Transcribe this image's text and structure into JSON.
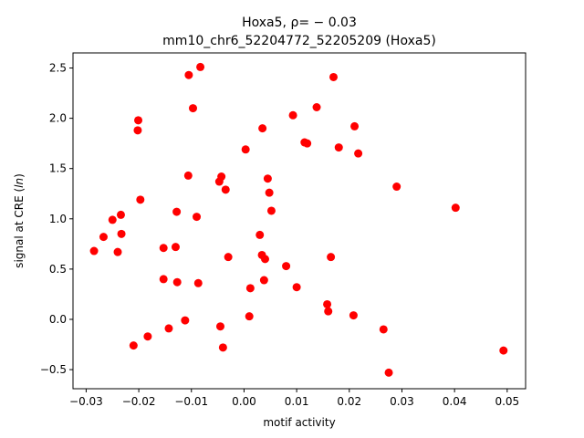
{
  "chart_data": {
    "type": "scatter",
    "title_line1": "Hoxa5, ρ= − 0.03",
    "title_line2": "mm10_chr6_52204772_52205209 (Hoxa5)",
    "xlabel": "motif activity",
    "ylabel": "signal at CRE (ln)",
    "xlim": [
      -0.0325,
      0.0535
    ],
    "ylim": [
      -0.69,
      2.65
    ],
    "xticks": [
      -0.03,
      -0.02,
      -0.01,
      0.0,
      0.01,
      0.02,
      0.03,
      0.04,
      0.05
    ],
    "xtick_labels": [
      "−0.03",
      "−0.02",
      "−0.01",
      "0.00",
      "0.01",
      "0.02",
      "0.03",
      "0.04",
      "0.05"
    ],
    "yticks": [
      -0.5,
      0.0,
      0.5,
      1.0,
      1.5,
      2.0,
      2.5
    ],
    "ytick_labels": [
      "−0.5",
      "0.0",
      "0.5",
      "1.0",
      "1.5",
      "2.0",
      "2.5"
    ],
    "grid": false,
    "marker_color": "#ff0000",
    "points": [
      {
        "x": -0.0285,
        "y": 0.68
      },
      {
        "x": -0.0267,
        "y": 0.82
      },
      {
        "x": -0.025,
        "y": 0.99
      },
      {
        "x": -0.024,
        "y": 0.67
      },
      {
        "x": -0.0234,
        "y": 1.04
      },
      {
        "x": -0.0233,
        "y": 0.85
      },
      {
        "x": -0.021,
        "y": -0.26
      },
      {
        "x": -0.0201,
        "y": 1.98
      },
      {
        "x": -0.0202,
        "y": 1.88
      },
      {
        "x": -0.0197,
        "y": 1.19
      },
      {
        "x": -0.0183,
        "y": -0.17
      },
      {
        "x": -0.0153,
        "y": 0.71
      },
      {
        "x": -0.0153,
        "y": 0.4
      },
      {
        "x": -0.0143,
        "y": -0.09
      },
      {
        "x": -0.013,
        "y": 0.72
      },
      {
        "x": -0.0128,
        "y": 1.07
      },
      {
        "x": -0.0127,
        "y": 0.37
      },
      {
        "x": -0.0112,
        "y": -0.01
      },
      {
        "x": -0.0106,
        "y": 1.43
      },
      {
        "x": -0.0105,
        "y": 2.43
      },
      {
        "x": -0.0097,
        "y": 2.1
      },
      {
        "x": -0.009,
        "y": 1.02
      },
      {
        "x": -0.0087,
        "y": 0.36
      },
      {
        "x": -0.0083,
        "y": 2.51
      },
      {
        "x": -0.0047,
        "y": 1.37
      },
      {
        "x": -0.0043,
        "y": 1.42
      },
      {
        "x": -0.0045,
        "y": -0.07
      },
      {
        "x": -0.004,
        "y": -0.28
      },
      {
        "x": -0.0035,
        "y": 1.29
      },
      {
        "x": -0.003,
        "y": 0.62
      },
      {
        "x": 0.0003,
        "y": 1.69
      },
      {
        "x": 0.001,
        "y": 0.03
      },
      {
        "x": 0.0012,
        "y": 0.31
      },
      {
        "x": 0.003,
        "y": 0.84
      },
      {
        "x": 0.0034,
        "y": 0.64
      },
      {
        "x": 0.0035,
        "y": 1.9
      },
      {
        "x": 0.0038,
        "y": 0.39
      },
      {
        "x": 0.004,
        "y": 0.6
      },
      {
        "x": 0.0045,
        "y": 1.4
      },
      {
        "x": 0.0048,
        "y": 1.26
      },
      {
        "x": 0.0052,
        "y": 1.08
      },
      {
        "x": 0.008,
        "y": 0.53
      },
      {
        "x": 0.0093,
        "y": 2.03
      },
      {
        "x": 0.01,
        "y": 0.32
      },
      {
        "x": 0.0115,
        "y": 1.76
      },
      {
        "x": 0.012,
        "y": 1.75
      },
      {
        "x": 0.0138,
        "y": 2.11
      },
      {
        "x": 0.0158,
        "y": 0.15
      },
      {
        "x": 0.016,
        "y": 0.08
      },
      {
        "x": 0.0165,
        "y": 0.62
      },
      {
        "x": 0.017,
        "y": 2.41
      },
      {
        "x": 0.018,
        "y": 1.71
      },
      {
        "x": 0.0208,
        "y": 0.04
      },
      {
        "x": 0.021,
        "y": 1.92
      },
      {
        "x": 0.0217,
        "y": 1.65
      },
      {
        "x": 0.0265,
        "y": -0.1
      },
      {
        "x": 0.0275,
        "y": -0.53
      },
      {
        "x": 0.029,
        "y": 1.32
      },
      {
        "x": 0.0402,
        "y": 1.11
      },
      {
        "x": 0.0493,
        "y": -0.31
      }
    ]
  }
}
